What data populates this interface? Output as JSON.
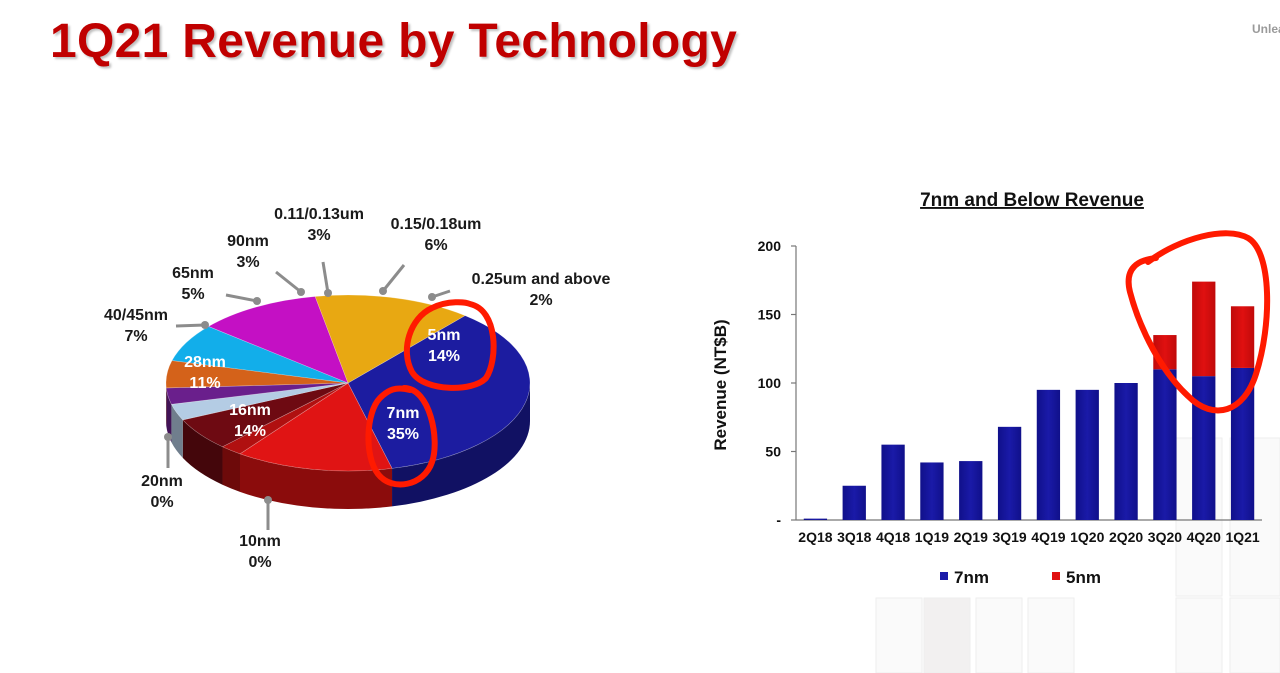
{
  "title": "1Q21 Revenue by Technology",
  "corner_fragment": "Unlea",
  "colors": {
    "title": "#c00000",
    "7nm": "#1a1aa8",
    "5nm": "#e01010",
    "annotation": "#ff1a00"
  },
  "chart_data": [
    {
      "type": "pie",
      "title": "",
      "slices": [
        {
          "label": "7nm",
          "value": 35,
          "pct": "35%",
          "color": "#1c1ca0"
        },
        {
          "label": "5nm",
          "value": 14,
          "pct": "14%",
          "color": "#e01414"
        },
        {
          "label": "0.25um and above",
          "value": 2,
          "pct": "2%",
          "color": "#b01010"
        },
        {
          "label": "0.15/0.18um",
          "value": 6,
          "pct": "6%",
          "color": "#6e0a12"
        },
        {
          "label": "0.11/0.13um",
          "value": 3,
          "pct": "3%",
          "color": "#b4cce4"
        },
        {
          "label": "90nm",
          "value": 3,
          "pct": "3%",
          "color": "#6a1f8c"
        },
        {
          "label": "65nm",
          "value": 5,
          "pct": "5%",
          "color": "#d4621a"
        },
        {
          "label": "40/45nm",
          "value": 7,
          "pct": "7%",
          "color": "#12aeea"
        },
        {
          "label": "28nm",
          "value": 11,
          "pct": "11%",
          "color": "#c410c4"
        },
        {
          "label": "20nm",
          "value": 0,
          "pct": "0%",
          "color": "#7a5a10"
        },
        {
          "label": "16nm",
          "value": 14,
          "pct": "14%",
          "color": "#e8a812"
        },
        {
          "label": "10nm",
          "value": 0,
          "pct": "0%",
          "color": "#1c1ca0"
        }
      ]
    },
    {
      "type": "bar",
      "stacked": true,
      "title": "7nm and Below Revenue",
      "xlabel": "",
      "ylabel": "Revenue (NT$B)",
      "ylim": [
        0,
        200
      ],
      "yticks": [
        0,
        50,
        100,
        150,
        200
      ],
      "ytick_labels": [
        "-",
        "50",
        "100",
        "150",
        "200"
      ],
      "categories": [
        "2Q18",
        "3Q18",
        "4Q18",
        "1Q19",
        "2Q19",
        "3Q19",
        "4Q19",
        "1Q20",
        "2Q20",
        "3Q20",
        "4Q20",
        "1Q21"
      ],
      "series": [
        {
          "name": "7nm",
          "color": "#1a1aa8",
          "values": [
            1,
            25,
            55,
            42,
            43,
            68,
            95,
            95,
            100,
            110,
            105,
            111
          ]
        },
        {
          "name": "5nm",
          "color": "#e01010",
          "values": [
            0,
            0,
            0,
            0,
            0,
            0,
            0,
            0,
            0,
            25,
            69,
            45
          ]
        }
      ],
      "legend": "bottom"
    }
  ]
}
